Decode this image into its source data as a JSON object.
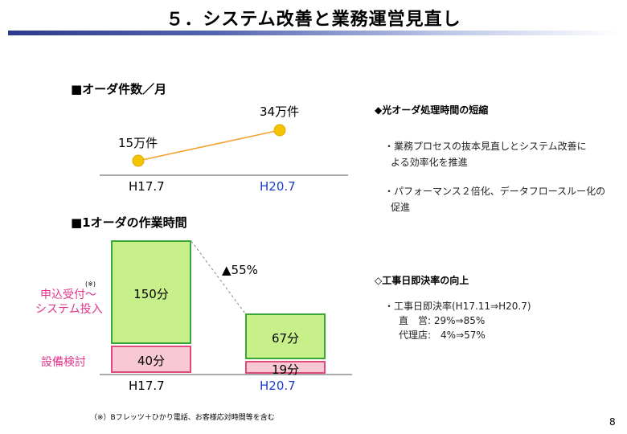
{
  "title": "５．システム改善と業務運営見直し",
  "chart1": {
    "heading": "■オーダ件数／月",
    "points": [
      {
        "x_label": "H17.7",
        "value_label": "15万件",
        "value": 15
      },
      {
        "x_label": "H20.7",
        "value_label": "34万件",
        "value": 34
      }
    ],
    "colors": {
      "line": "#f5a030",
      "marker": "#f5c400",
      "x2_label": "#1a3fd0"
    }
  },
  "chart2": {
    "heading": "■1オーダの作業時間",
    "categories": [
      "H17.7",
      "H20.7"
    ],
    "series": [
      {
        "name": "申込受付～システム投入",
        "labels": [
          "150分",
          "67分"
        ],
        "values": [
          150,
          67
        ],
        "color": "#c8f08a"
      },
      {
        "name": "設備検討",
        "labels": [
          "40分",
          "19分"
        ],
        "values": [
          40,
          19
        ],
        "color": "#f8c8d4"
      }
    ],
    "legend_line1": "申込受付～",
    "legend_line2": "システム投入",
    "legend_note": "(※)",
    "reduction": "▲55%"
  },
  "right": {
    "heading1": "◆光オーダ処理時間の短縮",
    "bullet1_line1": "・業務プロセスの抜本見直しとシステム改善に",
    "bullet1_line2": "よる効率化を推進",
    "bullet2_line1": "・パフォーマンス２倍化、データフロースルー化の",
    "bullet2_line2": "促進",
    "heading2": "◇工事日即決率の向上",
    "item1": "・工事日即決率(H17.11⇒H20.7)",
    "item2": "直　営: 29%⇒85%",
    "item3": "代理店:　4%⇒57%"
  },
  "footnote": "（※）Bフレッツ＋ひかり電話、お客様応対時間等を含む",
  "page_number": "8"
}
